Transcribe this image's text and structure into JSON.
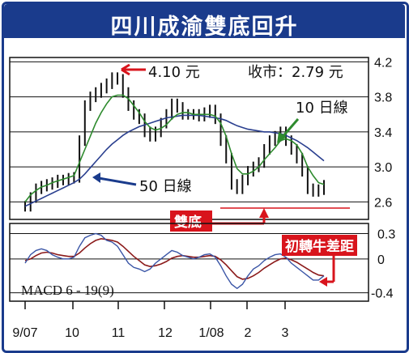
{
  "title": "四川成渝雙底回升",
  "colors": {
    "frame": "#1a3b8c",
    "price": "#111111",
    "ma10": "#2e8b2e",
    "ma50": "#2a3f8f",
    "arrow_blue": "#1a3b8c",
    "accent_red": "#d8141c",
    "macd_fast": "#3a55a6",
    "macd_signal": "#8b1a1a"
  },
  "chart_data": [
    {
      "type": "candlestick",
      "x_ticks": [
        "9/07",
        "10",
        "11",
        "12",
        "1/08",
        "2",
        "3"
      ],
      "y_ticks": [
        4.2,
        3.8,
        3.4,
        3.0,
        2.6
      ],
      "ylim": [
        2.4,
        4.25
      ],
      "grid": true,
      "annotations": {
        "high": "4.10 元",
        "close": "收市：2.79 元",
        "ma10": "10 日線",
        "ma50": "50 日線",
        "double_bottom": "雙底"
      },
      "series": [
        {
          "values": [
            2.55,
            2.65,
            2.75,
            2.78,
            2.8,
            2.82,
            2.85,
            2.85,
            2.87,
            2.88,
            3.3,
            3.7,
            3.8,
            3.85,
            3.9,
            3.95,
            4.02,
            4.0,
            3.85,
            3.7,
            3.6,
            3.55,
            3.4,
            3.35,
            3.4,
            3.5,
            3.6,
            3.72,
            3.68,
            3.6,
            3.6,
            3.6,
            3.58,
            3.62,
            3.65,
            3.55,
            3.3,
            3.1,
            2.8,
            2.75,
            2.85,
            2.95,
            3.0,
            3.05,
            3.2,
            3.3,
            3.35,
            3.4,
            3.3,
            3.2,
            3.1,
            2.95,
            2.75,
            2.72,
            2.74,
            2.79
          ]
        },
        {
          "values": [
            2.6,
            2.68,
            2.73,
            2.77,
            2.79,
            2.82,
            2.84,
            2.86,
            2.88,
            2.9,
            3.05,
            3.2,
            3.35,
            3.5,
            3.62,
            3.72,
            3.8,
            3.82,
            3.82,
            3.78,
            3.7,
            3.62,
            3.52,
            3.45,
            3.42,
            3.44,
            3.48,
            3.55,
            3.6,
            3.62,
            3.62,
            3.6,
            3.6,
            3.6,
            3.6,
            3.58,
            3.5,
            3.35,
            3.15,
            2.98,
            2.92,
            2.92,
            2.95,
            3.0,
            3.08,
            3.15,
            3.22,
            3.3,
            3.32,
            3.3,
            3.25,
            3.15,
            3.0,
            2.9,
            2.82,
            2.8
          ]
        },
        {
          "values": [
            2.55,
            2.58,
            2.61,
            2.64,
            2.67,
            2.7,
            2.73,
            2.76,
            2.79,
            2.82,
            2.86,
            2.92,
            2.99,
            3.06,
            3.13,
            3.2,
            3.26,
            3.31,
            3.36,
            3.4,
            3.43,
            3.46,
            3.48,
            3.5,
            3.52,
            3.54,
            3.56,
            3.57,
            3.58,
            3.59,
            3.59,
            3.59,
            3.59,
            3.58,
            3.57,
            3.56,
            3.55,
            3.53,
            3.5,
            3.47,
            3.45,
            3.43,
            3.42,
            3.41,
            3.4,
            3.4,
            3.39,
            3.38,
            3.36,
            3.33,
            3.3,
            3.26,
            3.22,
            3.17,
            3.12,
            3.07
          ]
        }
      ]
    },
    {
      "type": "line",
      "label": "MACD 6 - 19(9)",
      "y_ticks": [
        0.3,
        0,
        -0.4
      ],
      "ylim": [
        -0.5,
        0.42
      ],
      "series": [
        {
          "values": [
            -0.05,
            0.05,
            0.1,
            0.12,
            0.1,
            0.05,
            0.02,
            0.0,
            0.0,
            0.02,
            0.15,
            0.25,
            0.28,
            0.3,
            0.28,
            0.22,
            0.2,
            0.15,
            0.05,
            -0.05,
            -0.1,
            -0.12,
            -0.15,
            -0.12,
            -0.05,
            0.0,
            0.05,
            0.1,
            0.08,
            0.04,
            0.02,
            0.0,
            0.02,
            0.05,
            0.06,
            0.02,
            -0.08,
            -0.2,
            -0.3,
            -0.35,
            -0.3,
            -0.2,
            -0.12,
            -0.08,
            -0.02,
            0.02,
            0.05,
            0.06,
            0.02,
            -0.05,
            -0.1,
            -0.15,
            -0.2,
            -0.25,
            -0.25,
            -0.2
          ]
        },
        {
          "values": [
            -0.02,
            0.0,
            0.04,
            0.07,
            0.08,
            0.07,
            0.05,
            0.04,
            0.03,
            0.03,
            0.07,
            0.13,
            0.18,
            0.22,
            0.24,
            0.23,
            0.22,
            0.2,
            0.15,
            0.09,
            0.03,
            -0.02,
            -0.07,
            -0.09,
            -0.08,
            -0.06,
            -0.03,
            0.01,
            0.03,
            0.04,
            0.03,
            0.02,
            0.02,
            0.03,
            0.04,
            0.03,
            -0.01,
            -0.07,
            -0.14,
            -0.21,
            -0.24,
            -0.23,
            -0.2,
            -0.16,
            -0.11,
            -0.07,
            -0.03,
            0.0,
            0.01,
            -0.01,
            -0.04,
            -0.08,
            -0.12,
            -0.16,
            -0.19,
            -0.2
          ]
        }
      ],
      "annotations": {
        "crossover": "初轉牛差距"
      }
    }
  ]
}
